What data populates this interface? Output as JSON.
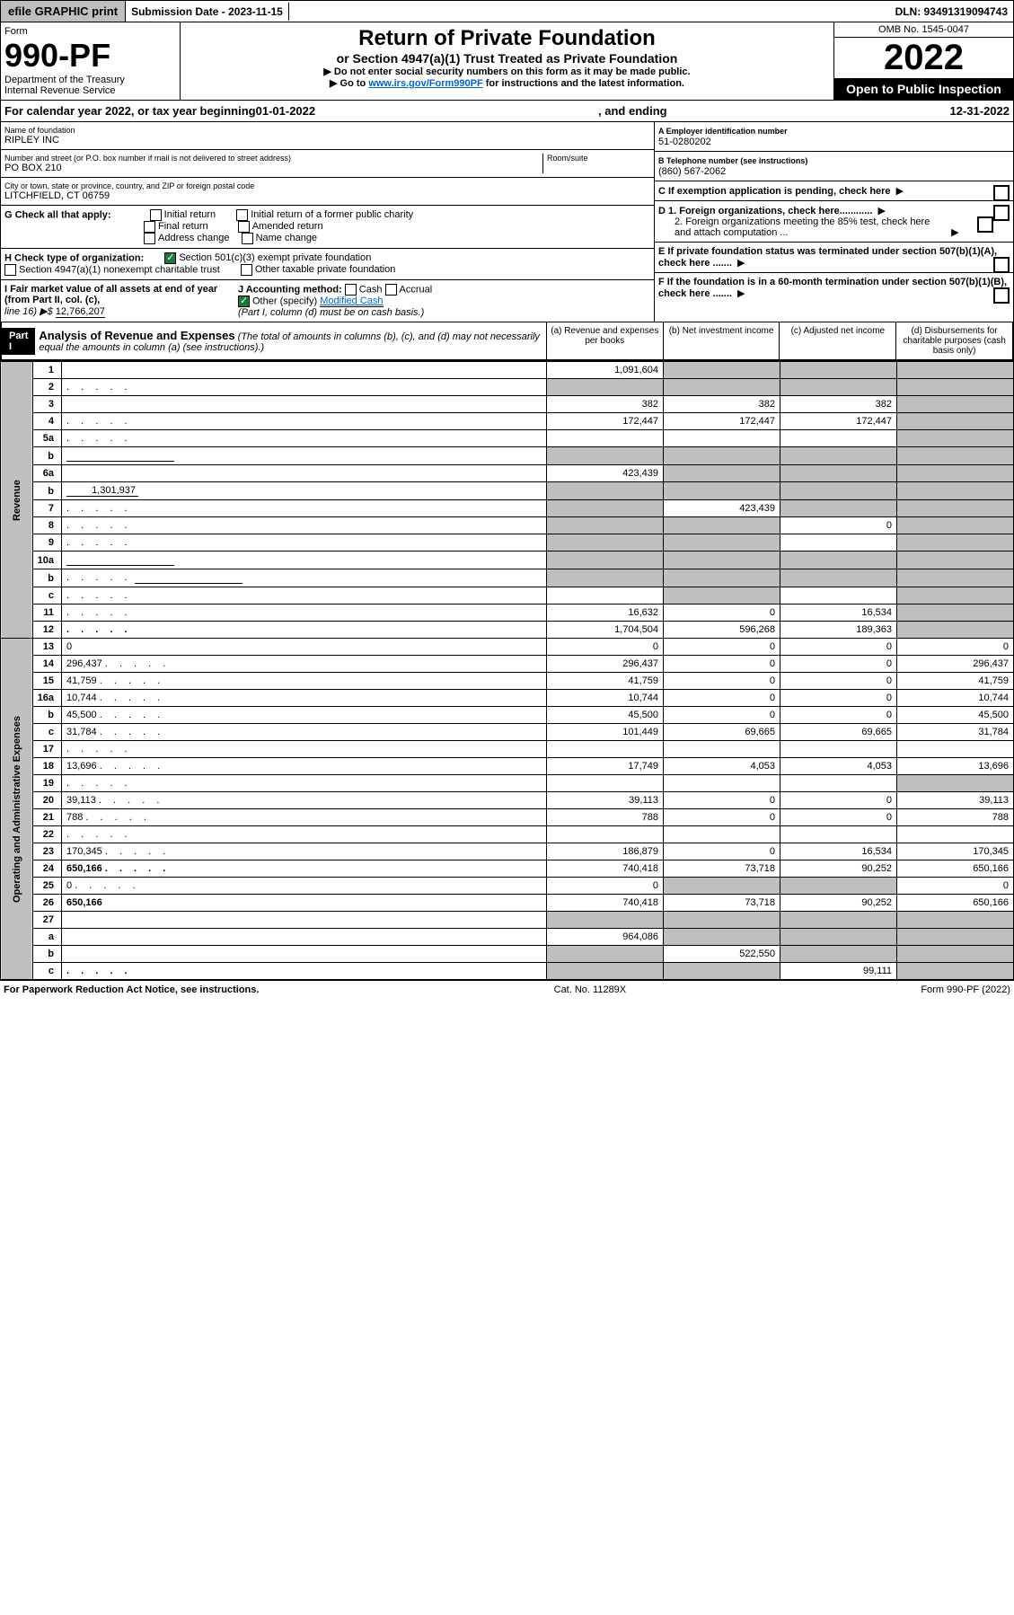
{
  "top": {
    "efile": "efile GRAPHIC print",
    "submission_label": "Submission Date - 2023-11-15",
    "dln": "DLN: 93491319094743"
  },
  "header": {
    "form_word": "Form",
    "form_no": "990-PF",
    "dept1": "Department of the Treasury",
    "dept2": "Internal Revenue Service",
    "title": "Return of Private Foundation",
    "subtitle": "or Section 4947(a)(1) Trust Treated as Private Foundation",
    "note1": "▶ Do not enter social security numbers on this form as it may be made public.",
    "note2_pre": "▶ Go to ",
    "note2_link": "www.irs.gov/Form990PF",
    "note2_post": " for instructions and the latest information.",
    "omb": "OMB No. 1545-0047",
    "year": "2022",
    "inspect": "Open to Public Inspection"
  },
  "calyear": {
    "pre": "For calendar year 2022, or tax year beginning ",
    "begin": "01-01-2022",
    "mid": ", and ending ",
    "end": "12-31-2022"
  },
  "info": {
    "name_label": "Name of foundation",
    "name": "RIPLEY INC",
    "addr_label": "Number and street (or P.O. box number if mail is not delivered to street address)",
    "addr": "PO BOX 210",
    "room_label": "Room/suite",
    "city_label": "City or town, state or province, country, and ZIP or foreign postal code",
    "city": "LITCHFIELD, CT  06759",
    "ein_label": "A Employer identification number",
    "ein": "51-0280202",
    "phone_label": "B Telephone number (see instructions)",
    "phone": "(860) 567-2062",
    "c_label": "C If exemption application is pending, check here",
    "g_label": "G Check all that apply:",
    "g_initial": "Initial return",
    "g_initial_former": "Initial return of a former public charity",
    "g_final": "Final return",
    "g_amended": "Amended return",
    "g_address": "Address change",
    "g_name": "Name change",
    "d1_label": "D 1. Foreign organizations, check here............",
    "d2_label": "2. Foreign organizations meeting the 85% test, check here and attach computation ...",
    "h_label": "H Check type of organization:",
    "h_501c3": "Section 501(c)(3) exempt private foundation",
    "h_4947": "Section 4947(a)(1) nonexempt charitable trust",
    "h_other": "Other taxable private foundation",
    "e_label": "E If private foundation status was terminated under section 507(b)(1)(A), check here .......",
    "i_label": "I Fair market value of all assets at end of year (from Part II, col. (c),",
    "i_line": "line 16) ▶$ ",
    "i_value": "12,766,207",
    "j_label": "J Accounting method:",
    "j_cash": "Cash",
    "j_accrual": "Accrual",
    "j_other": "Other (specify)",
    "j_other_val": "Modified Cash",
    "j_note": "(Part I, column (d) must be on cash basis.)",
    "f_label": "F If the foundation is in a 60-month termination under section 507(b)(1)(B), check here ......."
  },
  "part1": {
    "label": "Part I",
    "title": "Analysis of Revenue and Expenses",
    "desc": "(The total of amounts in columns (b), (c), and (d) may not necessarily equal the amounts in column (a) (see instructions).)",
    "col_a": "(a) Revenue and expenses per books",
    "col_b": "(b) Net investment income",
    "col_c": "(c) Adjusted net income",
    "col_d": "(d) Disbursements for charitable purposes (cash basis only)"
  },
  "vert": {
    "revenue": "Revenue",
    "expenses": "Operating and Administrative Expenses"
  },
  "rows": [
    {
      "n": "1",
      "d": "",
      "a": "1,091,604",
      "b": "",
      "c": "",
      "shade_b": true,
      "shade_c": true,
      "shade_d": true
    },
    {
      "n": "2",
      "d": "",
      "a": "",
      "b": "",
      "c": "",
      "dotted": true,
      "shade_a": true,
      "shade_b": true,
      "shade_c": true,
      "shade_d": true
    },
    {
      "n": "3",
      "d": "",
      "a": "382",
      "b": "382",
      "c": "382",
      "shade_d": true
    },
    {
      "n": "4",
      "d": "",
      "a": "172,447",
      "b": "172,447",
      "c": "172,447",
      "dotted": true,
      "shade_d": true
    },
    {
      "n": "5a",
      "d": "",
      "a": "",
      "b": "",
      "c": "",
      "dotted": true,
      "shade_d": true
    },
    {
      "n": "b",
      "d": "",
      "a": "",
      "b": "",
      "c": "",
      "inline_box": true,
      "shade_a": true,
      "shade_b": true,
      "shade_c": true,
      "shade_d": true
    },
    {
      "n": "6a",
      "d": "",
      "a": "423,439",
      "b": "",
      "c": "",
      "shade_b": true,
      "shade_c": true,
      "shade_d": true
    },
    {
      "n": "b",
      "d": "",
      "inline_val": "1,301,937",
      "a": "",
      "b": "",
      "c": "",
      "shade_a": true,
      "shade_b": true,
      "shade_c": true,
      "shade_d": true
    },
    {
      "n": "7",
      "d": "",
      "a": "",
      "b": "423,439",
      "c": "",
      "dotted": true,
      "shade_a": true,
      "shade_c": true,
      "shade_d": true
    },
    {
      "n": "8",
      "d": "",
      "a": "",
      "b": "",
      "c": "0",
      "dotted": true,
      "shade_a": true,
      "shade_b": true,
      "shade_d": true
    },
    {
      "n": "9",
      "d": "",
      "a": "",
      "b": "",
      "c": "",
      "dotted": true,
      "shade_a": true,
      "shade_b": true,
      "shade_d": true
    },
    {
      "n": "10a",
      "d": "",
      "a": "",
      "b": "",
      "c": "",
      "inline_box": true,
      "shade_a": true,
      "shade_b": true,
      "shade_c": true,
      "shade_d": true
    },
    {
      "n": "b",
      "d": "",
      "a": "",
      "b": "",
      "c": "",
      "dotted": true,
      "inline_box": true,
      "shade_a": true,
      "shade_b": true,
      "shade_c": true,
      "shade_d": true
    },
    {
      "n": "c",
      "d": "",
      "a": "",
      "b": "",
      "c": "",
      "dotted": true,
      "shade_b": true,
      "shade_d": true
    },
    {
      "n": "11",
      "d": "",
      "a": "16,632",
      "b": "0",
      "c": "16,534",
      "dotted": true,
      "shade_d": true
    },
    {
      "n": "12",
      "d": "",
      "a": "1,704,504",
      "b": "596,268",
      "c": "189,363",
      "dotted": true,
      "bold": true,
      "shade_d": true
    }
  ],
  "exp_rows": [
    {
      "n": "13",
      "d": "0",
      "a": "0",
      "b": "0",
      "c": "0"
    },
    {
      "n": "14",
      "d": "296,437",
      "a": "296,437",
      "b": "0",
      "c": "0",
      "dotted": true
    },
    {
      "n": "15",
      "d": "41,759",
      "a": "41,759",
      "b": "0",
      "c": "0",
      "dotted": true
    },
    {
      "n": "16a",
      "d": "10,744",
      "a": "10,744",
      "b": "0",
      "c": "0",
      "dotted": true
    },
    {
      "n": "b",
      "d": "45,500",
      "a": "45,500",
      "b": "0",
      "c": "0",
      "dotted": true
    },
    {
      "n": "c",
      "d": "31,784",
      "a": "101,449",
      "b": "69,665",
      "c": "69,665",
      "dotted": true
    },
    {
      "n": "17",
      "d": "",
      "a": "",
      "b": "",
      "c": "",
      "dotted": true
    },
    {
      "n": "18",
      "d": "13,696",
      "a": "17,749",
      "b": "4,053",
      "c": "4,053",
      "dotted": true
    },
    {
      "n": "19",
      "d": "",
      "a": "",
      "b": "",
      "c": "",
      "dotted": true,
      "shade_d": true
    },
    {
      "n": "20",
      "d": "39,113",
      "a": "39,113",
      "b": "0",
      "c": "0",
      "dotted": true
    },
    {
      "n": "21",
      "d": "788",
      "a": "788",
      "b": "0",
      "c": "0",
      "dotted": true
    },
    {
      "n": "22",
      "d": "",
      "a": "",
      "b": "",
      "c": "",
      "dotted": true
    },
    {
      "n": "23",
      "d": "170,345",
      "a": "186,879",
      "b": "0",
      "c": "16,534",
      "dotted": true
    },
    {
      "n": "24",
      "d": "650,166",
      "a": "740,418",
      "b": "73,718",
      "c": "90,252",
      "dotted": true,
      "bold": true
    },
    {
      "n": "25",
      "d": "0",
      "a": "0",
      "b": "",
      "c": "",
      "dotted": true,
      "shade_b": true,
      "shade_c": true
    },
    {
      "n": "26",
      "d": "650,166",
      "a": "740,418",
      "b": "73,718",
      "c": "90,252",
      "bold": true
    },
    {
      "n": "27",
      "d": "",
      "a": "",
      "b": "",
      "c": "",
      "shade_a": true,
      "shade_b": true,
      "shade_c": true,
      "shade_d": true
    },
    {
      "n": "a",
      "d": "",
      "a": "964,086",
      "b": "",
      "c": "",
      "bold": true,
      "shade_b": true,
      "shade_c": true,
      "shade_d": true
    },
    {
      "n": "b",
      "d": "",
      "a": "",
      "b": "522,550",
      "c": "",
      "bold": true,
      "shade_a": true,
      "shade_c": true,
      "shade_d": true
    },
    {
      "n": "c",
      "d": "",
      "a": "",
      "b": "",
      "c": "99,111",
      "bold": true,
      "dotted": true,
      "shade_a": true,
      "shade_b": true,
      "shade_d": true
    }
  ],
  "footer": {
    "left": "For Paperwork Reduction Act Notice, see instructions.",
    "mid": "Cat. No. 11289X",
    "right": "Form 990-PF (2022)"
  }
}
